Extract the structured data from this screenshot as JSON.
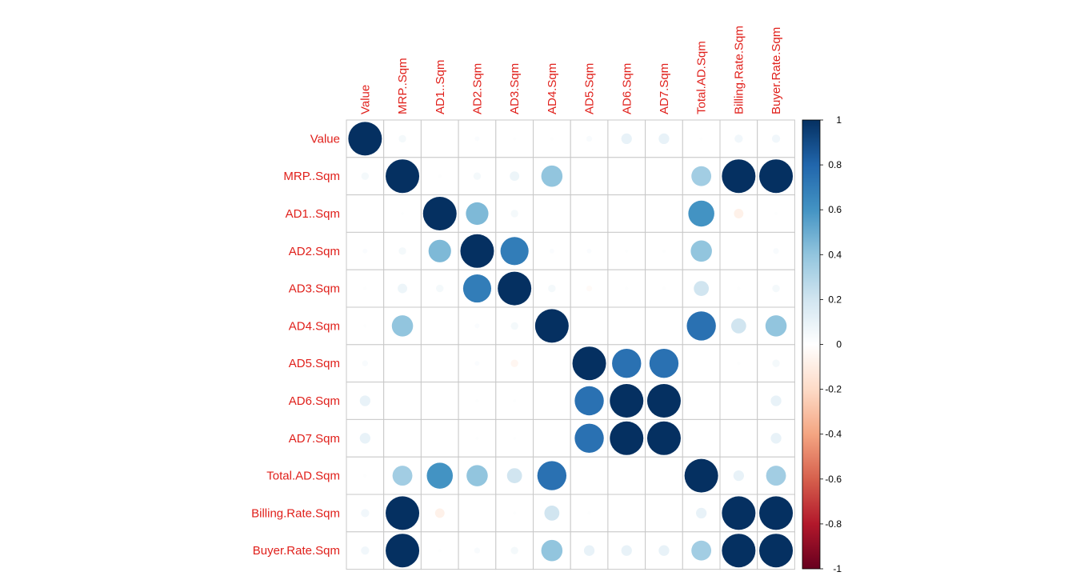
{
  "chart_data": {
    "type": "heatmap",
    "style": "circle correlation matrix",
    "variables": [
      "Value",
      "MRP..Sqm",
      "AD1..Sqm",
      "AD2.Sqm",
      "AD3.Sqm",
      "AD4.Sqm",
      "AD5.Sqm",
      "AD6.Sqm",
      "AD7.Sqm",
      "Total.AD.Sqm",
      "Billing.Rate.Sqm",
      "Buyer.Rate.Sqm"
    ],
    "matrix": [
      [
        1.0,
        0.05,
        0.0,
        0.02,
        0.01,
        0.01,
        0.03,
        0.1,
        0.1,
        0.01,
        0.06,
        0.06
      ],
      [
        0.05,
        1.0,
        0.01,
        0.05,
        0.08,
        0.4,
        0.0,
        0.0,
        0.0,
        0.35,
        1.0,
        1.0
      ],
      [
        0.0,
        0.01,
        1.0,
        0.45,
        0.05,
        0.0,
        0.0,
        0.0,
        0.0,
        0.6,
        -0.08,
        0.01
      ],
      [
        0.02,
        0.05,
        0.45,
        1.0,
        0.7,
        0.02,
        0.02,
        0.01,
        0.01,
        0.4,
        0.0,
        0.03
      ],
      [
        0.01,
        0.08,
        0.05,
        0.7,
        1.0,
        0.05,
        -0.03,
        0.01,
        0.01,
        0.2,
        0.01,
        0.05
      ],
      [
        0.01,
        0.4,
        0.0,
        0.02,
        0.05,
        1.0,
        0.0,
        0.0,
        0.0,
        0.75,
        0.2,
        0.4
      ],
      [
        0.03,
        0.0,
        0.0,
        0.02,
        -0.05,
        0.0,
        1.0,
        0.75,
        0.75,
        0.0,
        0.01,
        0.05
      ],
      [
        0.1,
        0.0,
        0.0,
        0.01,
        0.01,
        0.0,
        0.75,
        1.0,
        1.0,
        0.0,
        0.0,
        0.1
      ],
      [
        0.1,
        0.0,
        0.0,
        0.01,
        0.01,
        0.0,
        0.75,
        1.0,
        1.0,
        0.0,
        0.0,
        0.1
      ],
      [
        0.01,
        0.35,
        0.6,
        0.4,
        0.2,
        0.75,
        0.0,
        0.0,
        0.0,
        1.0,
        0.1,
        0.35
      ],
      [
        0.06,
        1.0,
        -0.08,
        0.0,
        0.01,
        0.2,
        0.01,
        0.0,
        0.0,
        0.1,
        1.0,
        1.0
      ],
      [
        0.06,
        1.0,
        0.01,
        0.03,
        0.05,
        0.4,
        0.1,
        0.1,
        0.1,
        0.35,
        1.0,
        1.0
      ]
    ],
    "colorbar": {
      "ticks": [
        "1",
        "0.8",
        "0.6",
        "0.4",
        "0.2",
        "0",
        "-0.2",
        "-0.4",
        "-0.6",
        "-0.8",
        "-1"
      ],
      "range": [
        -1,
        1
      ],
      "low_color": "#67001f",
      "mid_color": "#ffffff",
      "high_color": "#053061"
    },
    "label_color": "#e0201b",
    "grid_color": "#c8c8c8"
  }
}
